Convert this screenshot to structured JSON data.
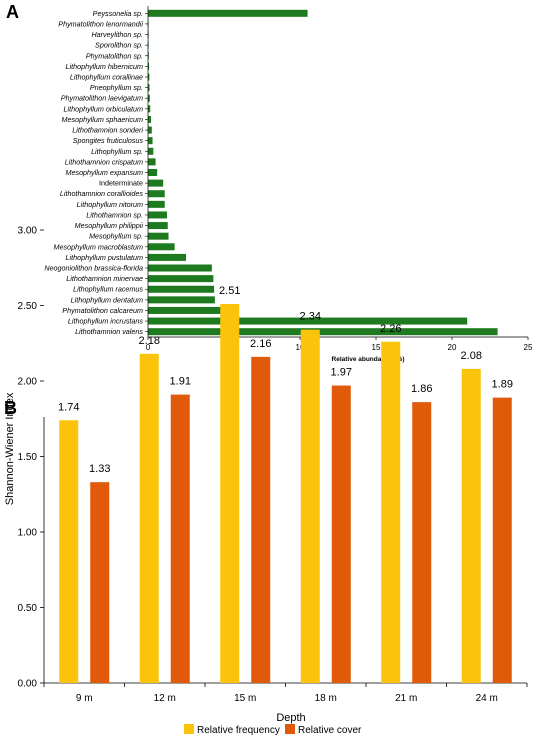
{
  "panels": {
    "a_letter": "A",
    "b_letter": "B"
  },
  "colors": {
    "bar_a": "#1e7a1e",
    "frequency": "#fbc30a",
    "cover": "#e05a0a"
  },
  "chart_data": [
    {
      "type": "bar",
      "orientation": "horizontal",
      "panel": "A",
      "title": "",
      "xlabel": "Relative abundance (%)",
      "ylabel": "",
      "xlim": [
        0,
        25
      ],
      "xticks": [
        "0",
        "5",
        "10",
        "15",
        "20",
        "25"
      ],
      "grid": false,
      "categories": [
        "Peyssonelia sp.",
        "Phymatolithon lenormandii",
        "Harveylithon sp.",
        "Sporolithon sp.",
        "Phymatolithon sp.",
        "Lithophyllum hibernicum",
        "Lithophyllum corallinae",
        "Pneophyllum sp.",
        "Phymatolithon laevigatum",
        "Lithophyllum orbiculatum",
        "Mesophyllum sphaericum",
        "Lithothamnion sonderi",
        "Spongites fruticulosus",
        "Lithophyllum sp.",
        "Lithothamnion crispatum",
        "Mesophyllum expansum",
        "Indeterminate",
        "Lithothamnion corallioides",
        "Lithophyllum nitorum",
        "Lithothamnion sp.",
        "Mesophyllum philippii",
        "Mesophyllum sp.",
        "Mesophyllum macroblastum",
        "Lithophyllum pustulatum",
        "Neogoniolithon brassica-florida",
        "Lithothamnion minervae",
        "Lithophyllum racemus",
        "Lithophyllum dentatum",
        "Phymatolithon calcareum",
        "Lithophyllum incrustans",
        "Lithothamnion valens"
      ],
      "upright_categories": [
        "Indeterminate"
      ],
      "values": [
        10.5,
        0.02,
        0.03,
        0.04,
        0.05,
        0.07,
        0.09,
        0.1,
        0.12,
        0.15,
        0.2,
        0.25,
        0.3,
        0.35,
        0.5,
        0.6,
        1.0,
        1.1,
        1.1,
        1.25,
        1.3,
        1.35,
        1.75,
        2.5,
        4.2,
        4.3,
        4.35,
        4.4,
        4.8,
        21.0,
        23.0
      ]
    },
    {
      "type": "bar",
      "panel": "B",
      "title": "",
      "xlabel": "Depth",
      "ylabel": "Shannon-Wiener Index",
      "ylim": [
        0,
        3.25
      ],
      "yticks": [
        "0.00",
        "0.50",
        "1.00",
        "1.50",
        "2.00",
        "2.50",
        "3.00"
      ],
      "grid": false,
      "legend_position": "bottom",
      "categories": [
        "9 m",
        "12 m",
        "15 m",
        "18 m",
        "21 m",
        "24 m"
      ],
      "series": [
        {
          "name": "Relative frequency",
          "values": [
            1.74,
            2.18,
            2.51,
            2.34,
            2.26,
            2.08
          ],
          "labels": [
            "1.74",
            "2.18",
            "2.51",
            "2.34",
            "2.26",
            "2.08"
          ]
        },
        {
          "name": "Relative cover",
          "values": [
            1.33,
            1.91,
            2.16,
            1.97,
            1.86,
            1.89
          ],
          "labels": [
            "1.33",
            "1.91",
            "2.16",
            "1.97",
            "1.86",
            "1.89"
          ]
        }
      ]
    }
  ]
}
